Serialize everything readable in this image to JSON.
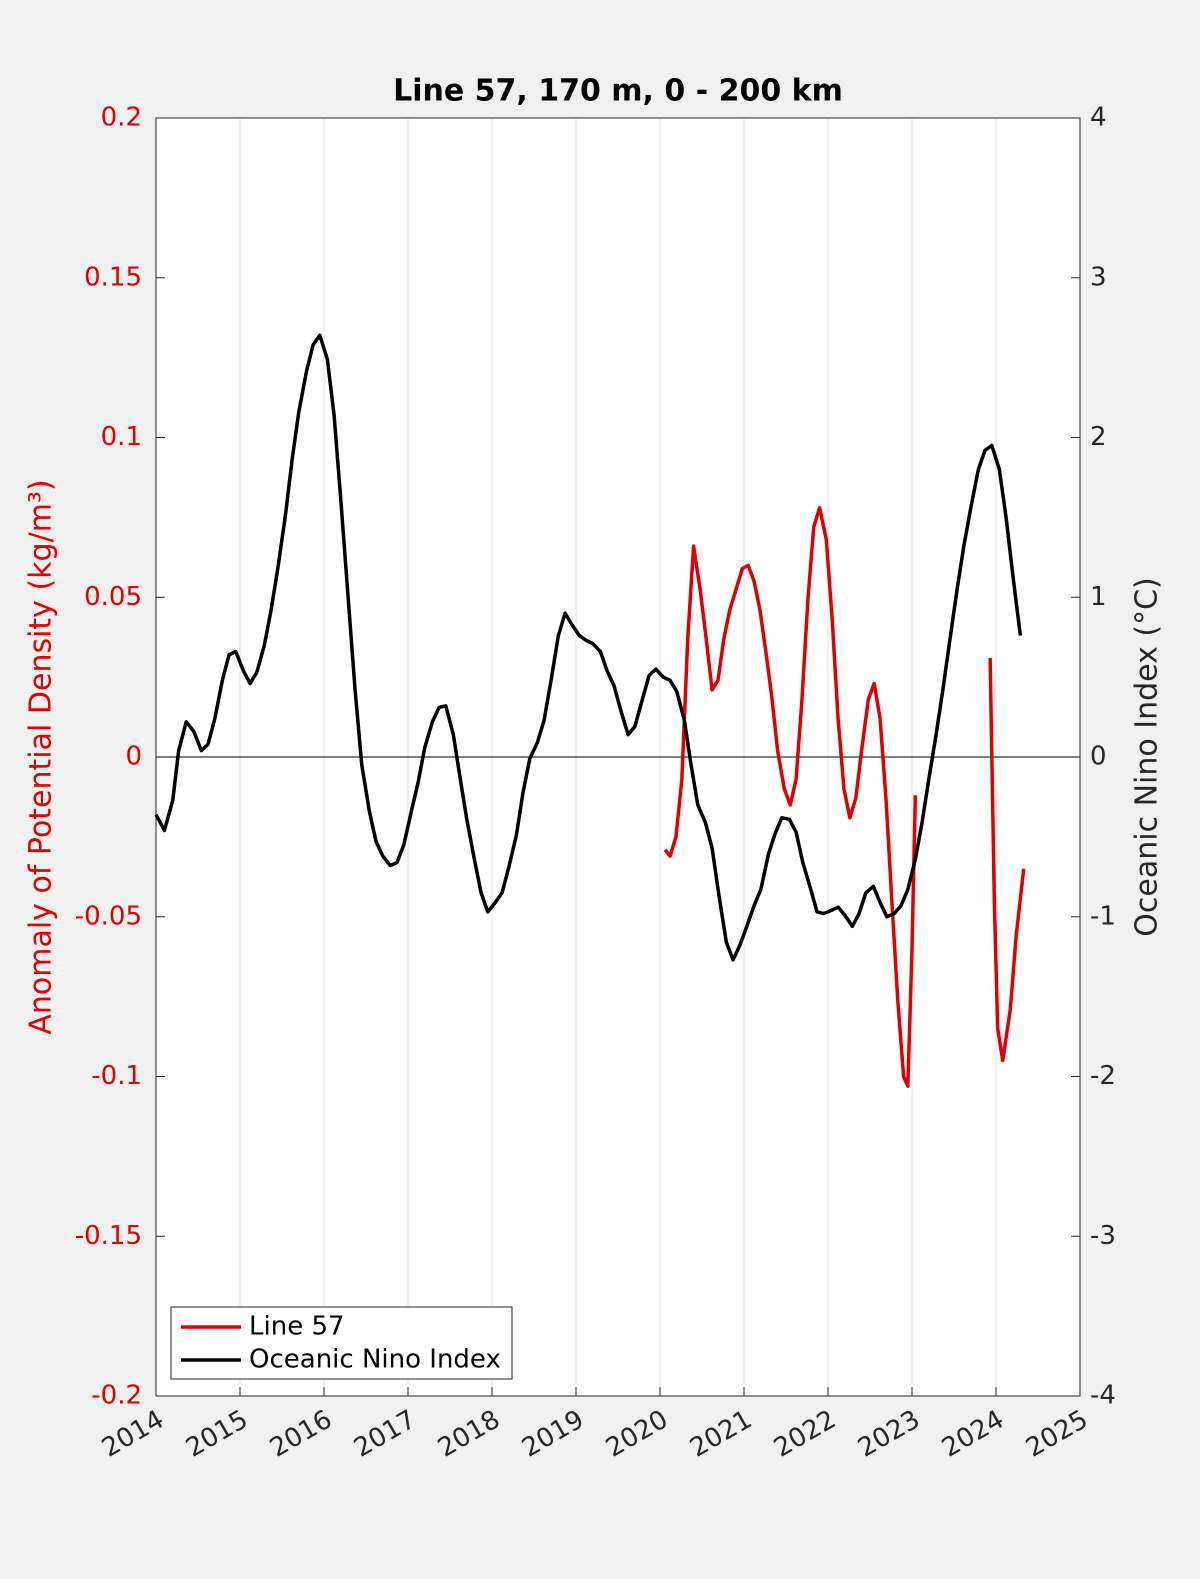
{
  "chart_data": {
    "type": "line",
    "title": "Line 57, 170 m, 0 - 200 km",
    "y_label": "Anomaly of Potential Density (kg/m³)",
    "y2_label": "Oceanic Nino Index (°C)",
    "xlim": [
      2014,
      2025
    ],
    "xticks": [
      2014,
      2015,
      2016,
      2017,
      2018,
      2019,
      2020,
      2021,
      2022,
      2023,
      2024,
      2025
    ],
    "ylim": [
      -0.2,
      0.2
    ],
    "yticks": [
      -0.2,
      -0.15,
      -0.1,
      -0.05,
      0,
      0.05,
      0.1,
      0.15,
      0.2
    ],
    "y2lim": [
      -4,
      4
    ],
    "y2ticks": [
      -4,
      -3,
      -2,
      -1,
      0,
      1,
      2,
      3,
      4
    ],
    "y_label_color": "#e00000",
    "grid": "x",
    "reference_line": 0,
    "legend": "lower left",
    "series": [
      {
        "name": "Line 57",
        "color": "#e00000",
        "axis": "y",
        "x": [
          2020.06,
          2020.12,
          2020.19,
          2020.26,
          2020.33,
          2020.4,
          2020.48,
          2020.55,
          2020.62,
          2020.69,
          2020.76,
          2020.83,
          2020.9,
          2020.98,
          2021.05,
          2021.12,
          2021.19,
          2021.26,
          2021.33,
          2021.4,
          2021.48,
          2021.55,
          2021.62,
          2021.69,
          2021.76,
          2021.83,
          2021.9,
          2021.98,
          2022.05,
          2022.12,
          2022.19,
          2022.26,
          2022.33,
          2022.4,
          2022.48,
          2022.55,
          2022.62,
          2022.69,
          2022.76,
          2022.83,
          2022.9,
          2022.95,
          2023.0,
          2023.04,
          2023.5,
          2023.93,
          2023.98,
          2024.02,
          2024.08,
          2024.17,
          2024.24,
          2024.33
        ],
        "values": [
          -0.029,
          -0.031,
          -0.025,
          -0.007,
          0.037,
          0.066,
          0.052,
          0.037,
          0.021,
          0.024,
          0.037,
          0.046,
          0.052,
          0.059,
          0.06,
          0.055,
          0.046,
          0.033,
          0.019,
          0.002,
          -0.01,
          -0.015,
          -0.007,
          0.018,
          0.049,
          0.072,
          0.078,
          0.068,
          0.043,
          0.012,
          -0.01,
          -0.019,
          -0.013,
          0.002,
          0.018,
          0.023,
          0.012,
          -0.013,
          -0.045,
          -0.076,
          -0.1,
          -0.103,
          -0.06,
          -0.012,
          null,
          0.031,
          -0.045,
          -0.085,
          -0.095,
          -0.079,
          -0.056,
          -0.035
        ]
      },
      {
        "name": "Oceanic Nino Index",
        "color": "#000000",
        "axis": "y2",
        "x": [
          2014.0,
          2014.1,
          2014.2,
          2014.27,
          2014.36,
          2014.45,
          2014.54,
          2014.62,
          2014.7,
          2014.79,
          2014.87,
          2014.95,
          2015.04,
          2015.12,
          2015.2,
          2015.29,
          2015.37,
          2015.45,
          2015.54,
          2015.62,
          2015.7,
          2015.79,
          2015.87,
          2015.95,
          2016.04,
          2016.12,
          2016.2,
          2016.29,
          2016.37,
          2016.45,
          2016.54,
          2016.62,
          2016.7,
          2016.79,
          2016.87,
          2016.95,
          2017.04,
          2017.12,
          2017.2,
          2017.29,
          2017.37,
          2017.45,
          2017.54,
          2017.62,
          2017.7,
          2017.79,
          2017.87,
          2017.95,
          2018.04,
          2018.12,
          2018.2,
          2018.29,
          2018.37,
          2018.45,
          2018.54,
          2018.62,
          2018.7,
          2018.79,
          2018.87,
          2018.95,
          2019.04,
          2019.12,
          2019.2,
          2019.29,
          2019.37,
          2019.45,
          2019.54,
          2019.62,
          2019.7,
          2019.79,
          2019.87,
          2019.95,
          2020.04,
          2020.12,
          2020.2,
          2020.29,
          2020.37,
          2020.45,
          2020.54,
          2020.62,
          2020.7,
          2020.79,
          2020.87,
          2020.95,
          2021.04,
          2021.12,
          2021.2,
          2021.29,
          2021.37,
          2021.45,
          2021.54,
          2021.62,
          2021.7,
          2021.79,
          2021.87,
          2021.95,
          2022.04,
          2022.12,
          2022.2,
          2022.29,
          2022.37,
          2022.45,
          2022.54,
          2022.62,
          2022.7,
          2022.79,
          2022.87,
          2022.95,
          2023.04,
          2023.12,
          2023.2,
          2023.29,
          2023.37,
          2023.45,
          2023.54,
          2023.62,
          2023.7,
          2023.79,
          2023.87,
          2023.95,
          2024.04,
          2024.12,
          2024.2,
          2024.29
        ],
        "values": [
          -0.36,
          -0.46,
          -0.27,
          0.04,
          0.22,
          0.16,
          0.04,
          0.08,
          0.24,
          0.48,
          0.64,
          0.66,
          0.54,
          0.46,
          0.53,
          0.7,
          0.92,
          1.18,
          1.51,
          1.86,
          2.16,
          2.41,
          2.58,
          2.64,
          2.49,
          2.14,
          1.61,
          0.98,
          0.42,
          -0.05,
          -0.34,
          -0.53,
          -0.62,
          -0.68,
          -0.66,
          -0.55,
          -0.34,
          -0.16,
          0.06,
          0.22,
          0.31,
          0.32,
          0.14,
          -0.13,
          -0.39,
          -0.64,
          -0.85,
          -0.97,
          -0.91,
          -0.85,
          -0.69,
          -0.49,
          -0.22,
          -0.01,
          0.09,
          0.23,
          0.47,
          0.76,
          0.9,
          0.83,
          0.76,
          0.73,
          0.71,
          0.66,
          0.54,
          0.45,
          0.28,
          0.14,
          0.19,
          0.36,
          0.51,
          0.55,
          0.5,
          0.48,
          0.41,
          0.23,
          -0.05,
          -0.3,
          -0.41,
          -0.57,
          -0.86,
          -1.16,
          -1.27,
          -1.18,
          -1.05,
          -0.93,
          -0.83,
          -0.61,
          -0.48,
          -0.38,
          -0.39,
          -0.47,
          -0.66,
          -0.82,
          -0.97,
          -0.98,
          -0.96,
          -0.94,
          -0.99,
          -1.06,
          -0.98,
          -0.85,
          -0.81,
          -0.91,
          -1.0,
          -0.98,
          -0.93,
          -0.83,
          -0.64,
          -0.41,
          -0.14,
          0.15,
          0.43,
          0.73,
          1.06,
          1.33,
          1.56,
          1.8,
          1.92,
          1.95,
          1.8,
          1.5,
          1.14,
          0.76
        ]
      }
    ]
  }
}
